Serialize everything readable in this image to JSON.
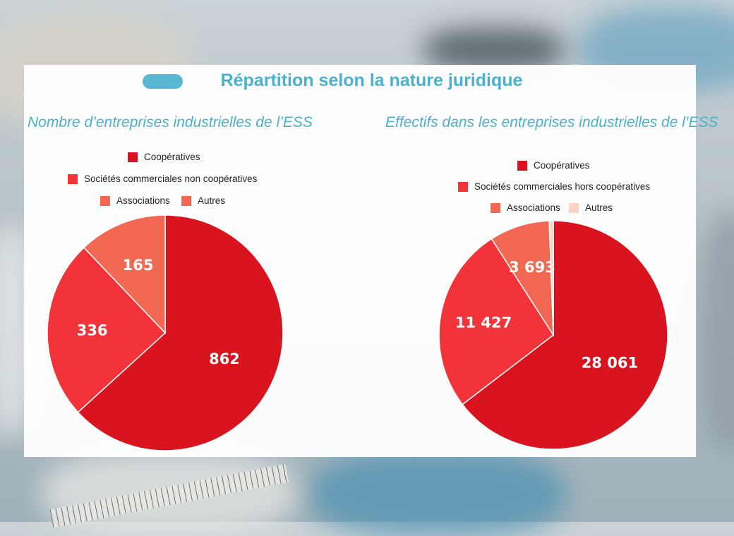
{
  "title": "Répartition selon la nature juridique",
  "colors": {
    "accent": "#4ab1cd",
    "pill": "#5ab7d3",
    "cooperatives": "#d9141f",
    "societes": "#f2333a",
    "associations": "#f26852",
    "autres": "#fbd3c6"
  },
  "chart_data": [
    {
      "type": "pie",
      "title": "Nombre d’entreprises industrielles de l’ESS",
      "legend": [
        "Coopératives",
        "Sociétés commerciales non coopératives",
        "Associations",
        "Autres"
      ],
      "slices": [
        {
          "label": "Coopératives",
          "value": 862,
          "display": "862",
          "color": "#d9141f"
        },
        {
          "label": "Sociétés commerciales non coopératives",
          "value": 336,
          "display": "336",
          "color": "#f2333a"
        },
        {
          "label": "Associations",
          "value": 165,
          "display": "165",
          "color": "#f26852"
        },
        {
          "label": "Autres",
          "value": 0,
          "display": "",
          "color": "#fbd3c6"
        }
      ]
    },
    {
      "type": "pie",
      "title": "Effectifs dans les entreprises industrielles de l’ESS",
      "legend": [
        "Coopératives",
        "Sociétés commerciales hors coopératives",
        "Associations",
        "Autres"
      ],
      "slices": [
        {
          "label": "Coopératives",
          "value": 28061,
          "display": "28 061",
          "color": "#d9141f"
        },
        {
          "label": "Sociétés commerciales hors coopératives",
          "value": 11427,
          "display": "11 427",
          "color": "#f2333a"
        },
        {
          "label": "Associations",
          "value": 3693,
          "display": "3 693",
          "color": "#f26852"
        },
        {
          "label": "Autres",
          "value": 250,
          "display": "",
          "color": "#fbd3c6"
        }
      ]
    }
  ]
}
